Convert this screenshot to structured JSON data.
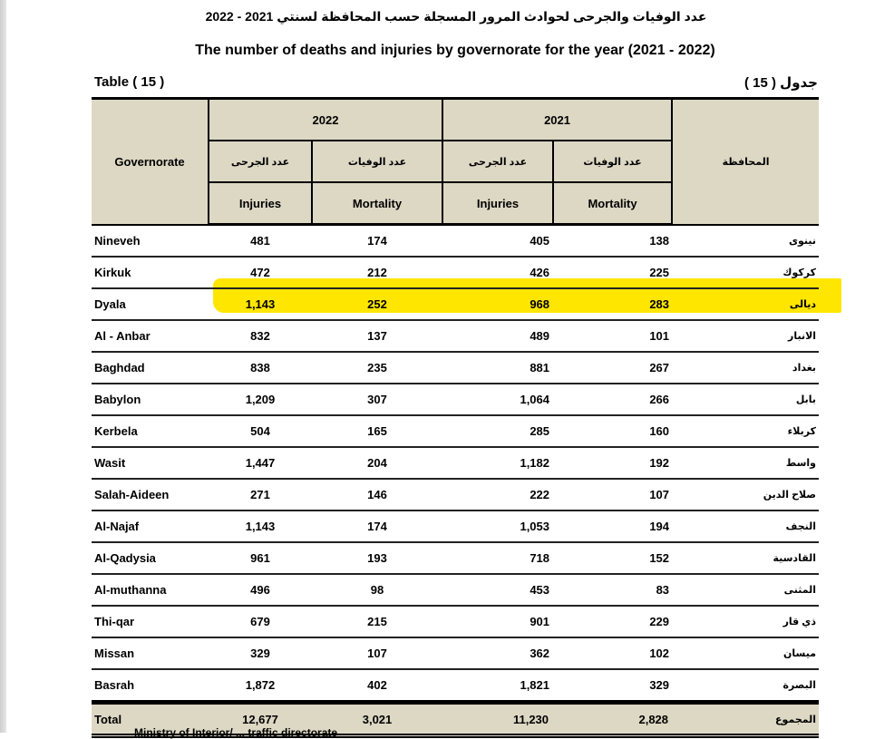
{
  "document": {
    "title_ar": "عدد الوفيات والجرحى لحوادث المرور المسجلة حسب المحافظة لسنتي 2021 - 2022",
    "title_en": "The number of deaths and injuries by governorate for the year (2021 - 2022)",
    "table_label_en": "Table ( 15 )",
    "table_label_ar": "جدول ( 15 )",
    "footer_note": "Ministry of Interior/ ... traffic directorate"
  },
  "table": {
    "headers": {
      "governorate_en": "Governorate",
      "governorate_ar": "المحافظة",
      "year_2022": "2022",
      "year_2021": "2021",
      "injuries_ar": "عدد الجرحى",
      "mortality_ar": "عدد الوفيات",
      "injuries_en": "Injuries",
      "mortality_en": "Mortality"
    },
    "highlight_color": "#ffe600",
    "header_bg": "#ddd8c4",
    "rows": [
      {
        "gov_en": "Nineveh",
        "inj_2022": "481",
        "mort_2022": "174",
        "inj_2021": "405",
        "mort_2021": "138",
        "gov_ar": "نينوى"
      },
      {
        "gov_en": "Kirkuk",
        "inj_2022": "472",
        "mort_2022": "212",
        "inj_2021": "426",
        "mort_2021": "225",
        "gov_ar": "كركوك"
      },
      {
        "gov_en": "Dyala",
        "inj_2022": "1,143",
        "mort_2022": "252",
        "inj_2021": "968",
        "mort_2021": "283",
        "gov_ar": "ديالى",
        "highlighted": true
      },
      {
        "gov_en": "Al - Anbar",
        "inj_2022": "832",
        "mort_2022": "137",
        "inj_2021": "489",
        "mort_2021": "101",
        "gov_ar": "الانبار"
      },
      {
        "gov_en": "Baghdad",
        "inj_2022": "838",
        "mort_2022": "235",
        "inj_2021": "881",
        "mort_2021": "267",
        "gov_ar": "بغداد"
      },
      {
        "gov_en": "Babylon",
        "inj_2022": "1,209",
        "mort_2022": "307",
        "inj_2021": "1,064",
        "mort_2021": "266",
        "gov_ar": "بابل"
      },
      {
        "gov_en": "Kerbela",
        "inj_2022": "504",
        "mort_2022": "165",
        "inj_2021": "285",
        "mort_2021": "160",
        "gov_ar": "كربلاء"
      },
      {
        "gov_en": "Wasit",
        "inj_2022": "1,447",
        "mort_2022": "204",
        "inj_2021": "1,182",
        "mort_2021": "192",
        "gov_ar": "واسط"
      },
      {
        "gov_en": "Salah-Aideen",
        "inj_2022": "271",
        "mort_2022": "146",
        "inj_2021": "222",
        "mort_2021": "107",
        "gov_ar": "صلاح الدين"
      },
      {
        "gov_en": "Al-Najaf",
        "inj_2022": "1,143",
        "mort_2022": "174",
        "inj_2021": "1,053",
        "mort_2021": "194",
        "gov_ar": "النجف"
      },
      {
        "gov_en": "Al-Qadysia",
        "inj_2022": "961",
        "mort_2022": "193",
        "inj_2021": "718",
        "mort_2021": "152",
        "gov_ar": "القادسية"
      },
      {
        "gov_en": "Al-muthanna",
        "inj_2022": "496",
        "mort_2022": "98",
        "inj_2021": "453",
        "mort_2021": "83",
        "gov_ar": "المثنى"
      },
      {
        "gov_en": "Thi-qar",
        "inj_2022": "679",
        "mort_2022": "215",
        "inj_2021": "901",
        "mort_2021": "229",
        "gov_ar": "ذي قار"
      },
      {
        "gov_en": "Missan",
        "inj_2022": "329",
        "mort_2022": "107",
        "inj_2021": "362",
        "mort_2021": "102",
        "gov_ar": "ميسان"
      },
      {
        "gov_en": "Basrah",
        "inj_2022": "1,872",
        "mort_2022": "402",
        "inj_2021": "1,821",
        "mort_2021": "329",
        "gov_ar": "البصرة"
      }
    ],
    "total": {
      "gov_en": "Total",
      "inj_2022": "12,677",
      "mort_2022": "3,021",
      "inj_2021": "11,230",
      "mort_2021": "2,828",
      "gov_ar": "المجموع"
    }
  }
}
